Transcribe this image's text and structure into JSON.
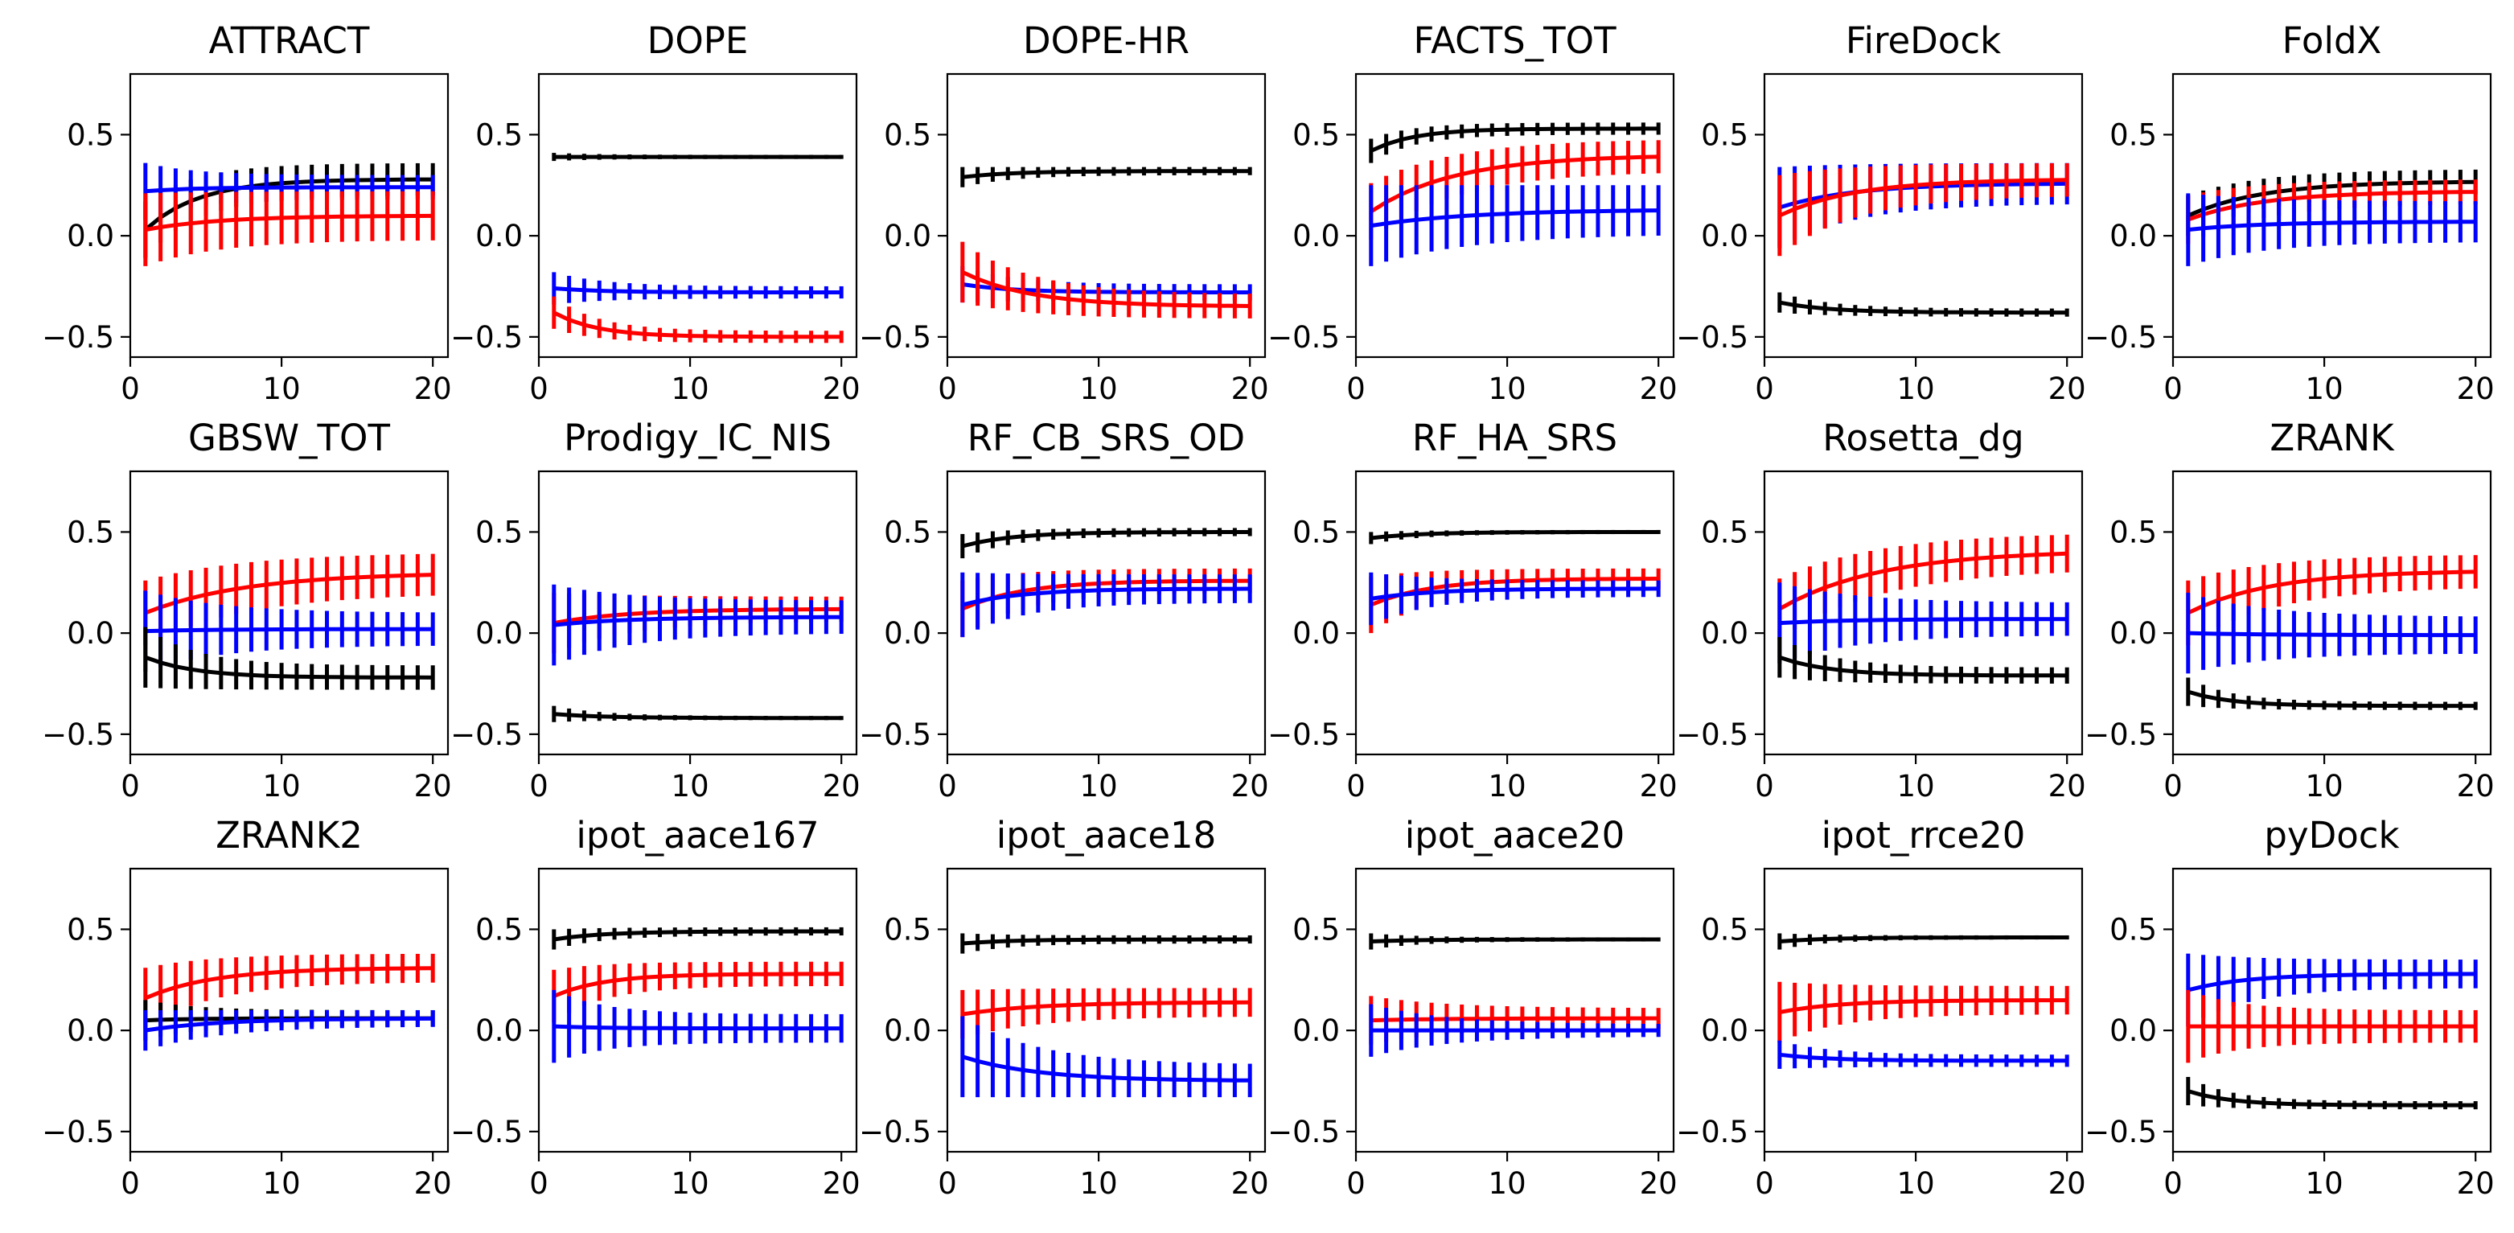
{
  "colors": {
    "black": "#000000",
    "blue": "#0000ff",
    "red": "#ff0000"
  },
  "chart_data": [
    {
      "type": "line",
      "title": "ATTRACT",
      "xlim": [
        0,
        21
      ],
      "ylim": [
        -0.6,
        0.8
      ],
      "xticks": [
        0,
        10,
        20
      ],
      "yticks": [
        -0.5,
        0.0,
        0.5
      ],
      "series": [
        {
          "color": "#000000",
          "start": 0.03,
          "end": 0.28,
          "rate": 0.28,
          "err_start": 0.14,
          "err_end": 0.08
        },
        {
          "color": "#0000ff",
          "start": 0.22,
          "end": 0.24,
          "rate": 0.3,
          "err_start": 0.14,
          "err_end": 0.06
        },
        {
          "color": "#ff0000",
          "start": 0.03,
          "end": 0.1,
          "rate": 0.2,
          "err_start": 0.18,
          "err_end": 0.12
        }
      ]
    },
    {
      "type": "line",
      "title": "DOPE",
      "xlim": [
        0,
        21
      ],
      "ylim": [
        -0.6,
        0.8
      ],
      "xticks": [
        0,
        10,
        20
      ],
      "yticks": [
        -0.5,
        0.0,
        0.5
      ],
      "series": [
        {
          "color": "#000000",
          "start": 0.39,
          "end": 0.39,
          "rate": 0.3,
          "err_start": 0.02,
          "err_end": 0.01
        },
        {
          "color": "#0000ff",
          "start": -0.26,
          "end": -0.28,
          "rate": 0.3,
          "err_start": 0.08,
          "err_end": 0.03
        },
        {
          "color": "#ff0000",
          "start": -0.38,
          "end": -0.5,
          "rate": 0.35,
          "err_start": 0.08,
          "err_end": 0.03
        }
      ]
    },
    {
      "type": "line",
      "title": "DOPE-HR",
      "xlim": [
        0,
        21
      ],
      "ylim": [
        -0.6,
        0.8
      ],
      "xticks": [
        0,
        10,
        20
      ],
      "yticks": [
        -0.5,
        0.0,
        0.5
      ],
      "series": [
        {
          "color": "#000000",
          "start": 0.29,
          "end": 0.32,
          "rate": 0.3,
          "err_start": 0.05,
          "err_end": 0.02
        },
        {
          "color": "#0000ff",
          "start": -0.24,
          "end": -0.28,
          "rate": 0.3,
          "err_start": 0.09,
          "err_end": 0.04
        },
        {
          "color": "#ff0000",
          "start": -0.18,
          "end": -0.35,
          "rate": 0.22,
          "err_start": 0.15,
          "err_end": 0.06
        }
      ]
    },
    {
      "type": "line",
      "title": "FACTS_TOT",
      "xlim": [
        0,
        21
      ],
      "ylim": [
        -0.6,
        0.8
      ],
      "xticks": [
        0,
        10,
        20
      ],
      "yticks": [
        -0.5,
        0.0,
        0.5
      ],
      "series": [
        {
          "color": "#000000",
          "start": 0.42,
          "end": 0.53,
          "rate": 0.35,
          "err_start": 0.06,
          "err_end": 0.03
        },
        {
          "color": "#ff0000",
          "start": 0.12,
          "end": 0.4,
          "rate": 0.18,
          "err_start": 0.14,
          "err_end": 0.08
        },
        {
          "color": "#0000ff",
          "start": 0.05,
          "end": 0.13,
          "rate": 0.15,
          "err_start": 0.2,
          "err_end": 0.12
        }
      ]
    },
    {
      "type": "line",
      "title": "FireDock",
      "xlim": [
        0,
        21
      ],
      "ylim": [
        -0.6,
        0.8
      ],
      "xticks": [
        0,
        10,
        20
      ],
      "yticks": [
        -0.5,
        0.0,
        0.5
      ],
      "series": [
        {
          "color": "#0000ff",
          "start": 0.14,
          "end": 0.26,
          "rate": 0.2,
          "err_start": 0.2,
          "err_end": 0.1
        },
        {
          "color": "#ff0000",
          "start": 0.1,
          "end": 0.28,
          "rate": 0.2,
          "err_start": 0.2,
          "err_end": 0.08
        },
        {
          "color": "#000000",
          "start": -0.33,
          "end": -0.38,
          "rate": 0.3,
          "err_start": 0.05,
          "err_end": 0.02
        }
      ]
    },
    {
      "type": "line",
      "title": "FoldX",
      "xlim": [
        0,
        21
      ],
      "ylim": [
        -0.6,
        0.8
      ],
      "xticks": [
        0,
        10,
        20
      ],
      "yticks": [
        -0.5,
        0.0,
        0.5
      ],
      "series": [
        {
          "color": "#000000",
          "start": 0.1,
          "end": 0.27,
          "rate": 0.2,
          "err_start": 0.1,
          "err_end": 0.06
        },
        {
          "color": "#ff0000",
          "start": 0.08,
          "end": 0.22,
          "rate": 0.2,
          "err_start": 0.12,
          "err_end": 0.06
        },
        {
          "color": "#0000ff",
          "start": 0.03,
          "end": 0.07,
          "rate": 0.2,
          "err_start": 0.18,
          "err_end": 0.1
        }
      ]
    },
    {
      "type": "line",
      "title": "GBSW_TOT",
      "xlim": [
        0,
        21
      ],
      "ylim": [
        -0.6,
        0.8
      ],
      "xticks": [
        0,
        10,
        20
      ],
      "yticks": [
        -0.5,
        0.0,
        0.5
      ],
      "series": [
        {
          "color": "#ff0000",
          "start": 0.1,
          "end": 0.3,
          "rate": 0.15,
          "err_start": 0.16,
          "err_end": 0.1
        },
        {
          "color": "#0000ff",
          "start": 0.01,
          "end": 0.02,
          "rate": 0.2,
          "err_start": 0.2,
          "err_end": 0.08
        },
        {
          "color": "#000000",
          "start": -0.12,
          "end": -0.22,
          "rate": 0.3,
          "err_start": 0.15,
          "err_end": 0.06
        }
      ]
    },
    {
      "type": "line",
      "title": "Prodigy_IC_NIS",
      "xlim": [
        0,
        21
      ],
      "ylim": [
        -0.6,
        0.8
      ],
      "xticks": [
        0,
        10,
        20
      ],
      "yticks": [
        -0.5,
        0.0,
        0.5
      ],
      "series": [
        {
          "color": "#ff0000",
          "start": 0.05,
          "end": 0.12,
          "rate": 0.2,
          "err_start": 0.15,
          "err_end": 0.06
        },
        {
          "color": "#0000ff",
          "start": 0.04,
          "end": 0.08,
          "rate": 0.2,
          "err_start": 0.2,
          "err_end": 0.08
        },
        {
          "color": "#000000",
          "start": -0.4,
          "end": -0.42,
          "rate": 0.3,
          "err_start": 0.04,
          "err_end": 0.01
        }
      ]
    },
    {
      "type": "line",
      "title": "RF_CB_SRS_OD",
      "xlim": [
        0,
        21
      ],
      "ylim": [
        -0.6,
        0.8
      ],
      "xticks": [
        0,
        10,
        20
      ],
      "yticks": [
        -0.5,
        0.0,
        0.5
      ],
      "series": [
        {
          "color": "#000000",
          "start": 0.43,
          "end": 0.5,
          "rate": 0.3,
          "err_start": 0.06,
          "err_end": 0.02
        },
        {
          "color": "#ff0000",
          "start": 0.12,
          "end": 0.26,
          "rate": 0.25,
          "err_start": 0.14,
          "err_end": 0.06
        },
        {
          "color": "#0000ff",
          "start": 0.14,
          "end": 0.22,
          "rate": 0.25,
          "err_start": 0.16,
          "err_end": 0.07
        }
      ]
    },
    {
      "type": "line",
      "title": "RF_HA_SRS",
      "xlim": [
        0,
        21
      ],
      "ylim": [
        -0.6,
        0.8
      ],
      "xticks": [
        0,
        10,
        20
      ],
      "yticks": [
        -0.5,
        0.0,
        0.5
      ],
      "series": [
        {
          "color": "#000000",
          "start": 0.47,
          "end": 0.5,
          "rate": 0.3,
          "err_start": 0.03,
          "err_end": 0.01
        },
        {
          "color": "#ff0000",
          "start": 0.14,
          "end": 0.27,
          "rate": 0.25,
          "err_start": 0.14,
          "err_end": 0.05
        },
        {
          "color": "#0000ff",
          "start": 0.17,
          "end": 0.22,
          "rate": 0.25,
          "err_start": 0.13,
          "err_end": 0.04
        }
      ]
    },
    {
      "type": "line",
      "title": "Rosetta_dg",
      "xlim": [
        0,
        21
      ],
      "ylim": [
        -0.6,
        0.8
      ],
      "xticks": [
        0,
        10,
        20
      ],
      "yticks": [
        -0.5,
        0.0,
        0.5
      ],
      "series": [
        {
          "color": "#ff0000",
          "start": 0.12,
          "end": 0.41,
          "rate": 0.15,
          "err_start": 0.15,
          "err_end": 0.09
        },
        {
          "color": "#0000ff",
          "start": 0.05,
          "end": 0.07,
          "rate": 0.2,
          "err_start": 0.2,
          "err_end": 0.08
        },
        {
          "color": "#000000",
          "start": -0.12,
          "end": -0.21,
          "rate": 0.3,
          "err_start": 0.1,
          "err_end": 0.04
        }
      ]
    },
    {
      "type": "line",
      "title": "ZRANK",
      "xlim": [
        0,
        21
      ],
      "ylim": [
        -0.6,
        0.8
      ],
      "xticks": [
        0,
        10,
        20
      ],
      "yticks": [
        -0.5,
        0.0,
        0.5
      ],
      "series": [
        {
          "color": "#ff0000",
          "start": 0.1,
          "end": 0.31,
          "rate": 0.18,
          "err_start": 0.16,
          "err_end": 0.08
        },
        {
          "color": "#0000ff",
          "start": 0.0,
          "end": -0.01,
          "rate": 0.2,
          "err_start": 0.2,
          "err_end": 0.09
        },
        {
          "color": "#000000",
          "start": -0.29,
          "end": -0.36,
          "rate": 0.35,
          "err_start": 0.07,
          "err_end": 0.02
        }
      ]
    },
    {
      "type": "line",
      "title": "ZRANK2",
      "xlim": [
        0,
        21
      ],
      "ylim": [
        -0.6,
        0.8
      ],
      "xticks": [
        0,
        10,
        20
      ],
      "yticks": [
        -0.5,
        0.0,
        0.5
      ],
      "series": [
        {
          "color": "#ff0000",
          "start": 0.16,
          "end": 0.31,
          "rate": 0.22,
          "err_start": 0.15,
          "err_end": 0.07
        },
        {
          "color": "#000000",
          "start": 0.05,
          "end": 0.06,
          "rate": 0.3,
          "err_start": 0.1,
          "err_end": 0.04
        },
        {
          "color": "#0000ff",
          "start": 0.0,
          "end": 0.06,
          "rate": 0.2,
          "err_start": 0.1,
          "err_end": 0.04
        }
      ]
    },
    {
      "type": "line",
      "title": "ipot_aace167",
      "xlim": [
        0,
        21
      ],
      "ylim": [
        -0.6,
        0.8
      ],
      "xticks": [
        0,
        10,
        20
      ],
      "yticks": [
        -0.5,
        0.0,
        0.5
      ],
      "series": [
        {
          "color": "#000000",
          "start": 0.45,
          "end": 0.49,
          "rate": 0.3,
          "err_start": 0.05,
          "err_end": 0.02
        },
        {
          "color": "#ff0000",
          "start": 0.17,
          "end": 0.28,
          "rate": 0.3,
          "err_start": 0.13,
          "err_end": 0.06
        },
        {
          "color": "#0000ff",
          "start": 0.02,
          "end": 0.01,
          "rate": 0.3,
          "err_start": 0.18,
          "err_end": 0.07
        }
      ]
    },
    {
      "type": "line",
      "title": "ipot_aace18",
      "xlim": [
        0,
        21
      ],
      "ylim": [
        -0.6,
        0.8
      ],
      "xticks": [
        0,
        10,
        20
      ],
      "yticks": [
        -0.5,
        0.0,
        0.5
      ],
      "series": [
        {
          "color": "#000000",
          "start": 0.43,
          "end": 0.45,
          "rate": 0.3,
          "err_start": 0.05,
          "err_end": 0.02
        },
        {
          "color": "#ff0000",
          "start": 0.08,
          "end": 0.14,
          "rate": 0.2,
          "err_start": 0.12,
          "err_end": 0.07
        },
        {
          "color": "#0000ff",
          "start": -0.13,
          "end": -0.25,
          "rate": 0.2,
          "err_start": 0.2,
          "err_end": 0.08
        }
      ]
    },
    {
      "type": "line",
      "title": "ipot_aace20",
      "xlim": [
        0,
        21
      ],
      "ylim": [
        -0.6,
        0.8
      ],
      "xticks": [
        0,
        10,
        20
      ],
      "yticks": [
        -0.5,
        0.0,
        0.5
      ],
      "series": [
        {
          "color": "#000000",
          "start": 0.44,
          "end": 0.45,
          "rate": 0.3,
          "err_start": 0.04,
          "err_end": 0.01
        },
        {
          "color": "#ff0000",
          "start": 0.05,
          "end": 0.06,
          "rate": 0.2,
          "err_start": 0.12,
          "err_end": 0.05
        },
        {
          "color": "#0000ff",
          "start": 0.0,
          "end": 0.0,
          "rate": 0.2,
          "err_start": 0.13,
          "err_end": 0.03
        }
      ]
    },
    {
      "type": "line",
      "title": "ipot_rrce20",
      "xlim": [
        0,
        21
      ],
      "ylim": [
        -0.6,
        0.8
      ],
      "xticks": [
        0,
        10,
        20
      ],
      "yticks": [
        -0.5,
        0.0,
        0.5
      ],
      "series": [
        {
          "color": "#000000",
          "start": 0.44,
          "end": 0.46,
          "rate": 0.3,
          "err_start": 0.04,
          "err_end": 0.01
        },
        {
          "color": "#ff0000",
          "start": 0.09,
          "end": 0.15,
          "rate": 0.25,
          "err_start": 0.15,
          "err_end": 0.07
        },
        {
          "color": "#0000ff",
          "start": -0.12,
          "end": -0.15,
          "rate": 0.3,
          "err_start": 0.07,
          "err_end": 0.03
        }
      ]
    },
    {
      "type": "line",
      "title": "pyDock",
      "xlim": [
        0,
        21
      ],
      "ylim": [
        -0.6,
        0.8
      ],
      "xticks": [
        0,
        10,
        20
      ],
      "yticks": [
        -0.5,
        0.0,
        0.5
      ],
      "series": [
        {
          "color": "#0000ff",
          "start": 0.2,
          "end": 0.28,
          "rate": 0.25,
          "err_start": 0.18,
          "err_end": 0.07
        },
        {
          "color": "#ff0000",
          "start": 0.02,
          "end": 0.02,
          "rate": 0.3,
          "err_start": 0.18,
          "err_end": 0.08
        },
        {
          "color": "#000000",
          "start": -0.3,
          "end": -0.37,
          "rate": 0.35,
          "err_start": 0.07,
          "err_end": 0.02
        }
      ]
    }
  ]
}
